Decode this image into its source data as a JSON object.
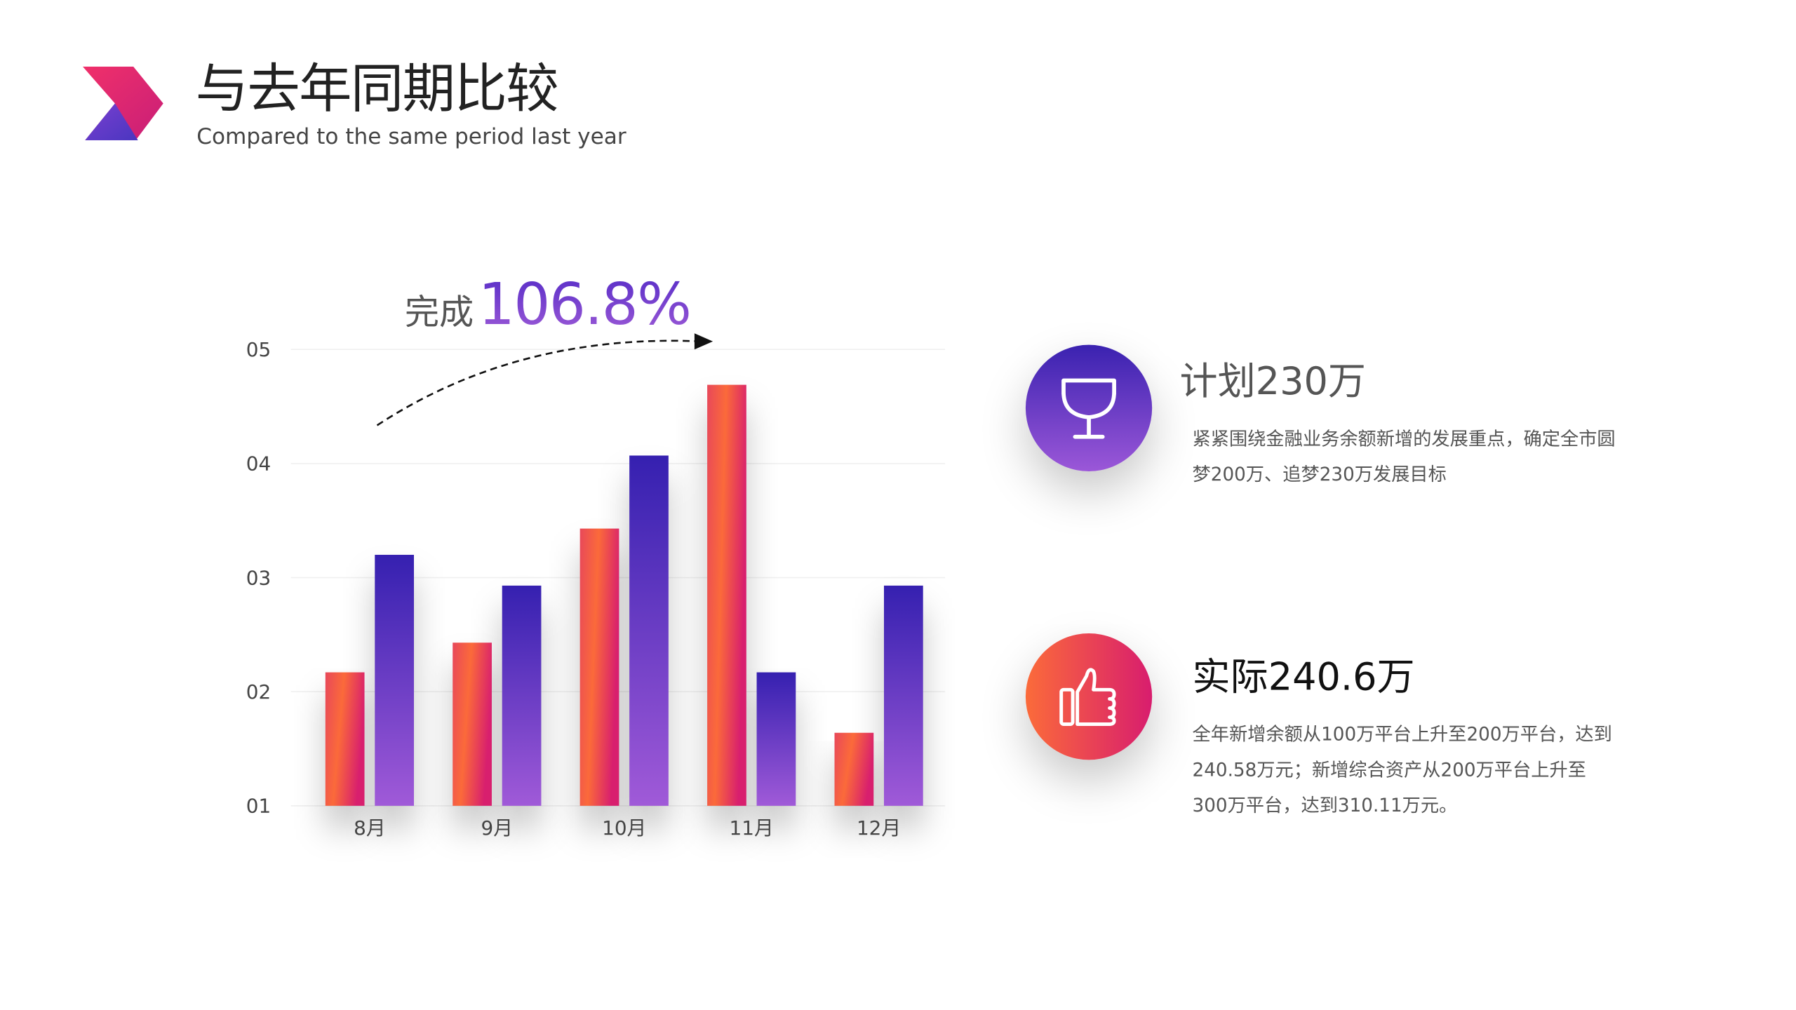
{
  "header": {
    "title": "与去年同期比较",
    "subtitle": "Compared to the same period last year",
    "logo_colors": [
      "#e0206a",
      "#5a3ec8"
    ]
  },
  "headline": {
    "prefix": "完成",
    "value": "106.8%"
  },
  "plan": {
    "icon": "trophy-icon",
    "title": "计划230万",
    "text": "紧紧围绕金融业务余额新增的发展重点，确定全市圆梦200万、追梦230万发展目标"
  },
  "actual": {
    "icon": "thumbs-up-icon",
    "title": "实际240.6万",
    "text": "全年新增余额从100万平台上升至200万平台，达到240.58万元；新增综合资产从200万平台上升至300万平台，达到310.11万元。"
  },
  "chart_data": {
    "type": "bar",
    "categories": [
      "8月",
      "9月",
      "10月",
      "11月",
      "12月"
    ],
    "series": [
      {
        "values": [
          2.17,
          2.43,
          3.43,
          4.69,
          1.64
        ],
        "color": "#f56542"
      },
      {
        "values": [
          3.2,
          2.93,
          4.07,
          2.17,
          2.93
        ],
        "color": "#4a2fc0"
      }
    ],
    "yticks": [
      "01",
      "02",
      "03",
      "04",
      "05"
    ],
    "ylim": [
      1,
      5
    ],
    "grid": true
  }
}
